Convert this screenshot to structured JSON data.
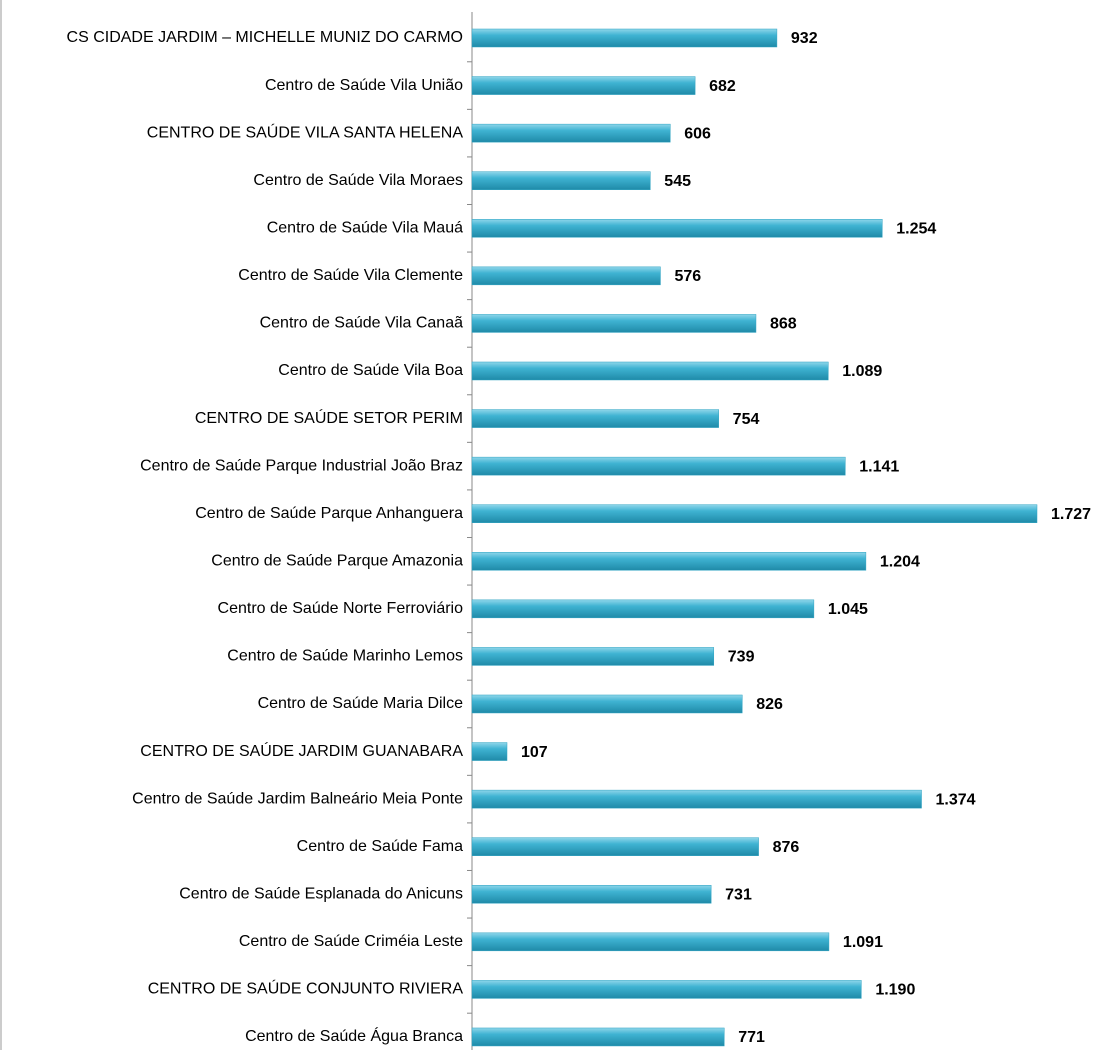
{
  "chart_data": {
    "type": "bar",
    "orientation": "horizontal",
    "categories": [
      "CS CIDADE JARDIM – MICHELLE MUNIZ DO CARMO",
      "Centro de Saúde Vila União",
      "CENTRO DE SAÚDE VILA SANTA HELENA",
      "Centro de Saúde Vila Moraes",
      "Centro de Saúde Vila Mauá",
      "Centro de Saúde Vila Clemente",
      "Centro de Saúde Vila Canaã",
      "Centro de Saúde Vila Boa",
      "CENTRO DE SAÚDE SETOR PERIM",
      "Centro de Saúde Parque Industrial João Braz",
      "Centro de Saúde Parque Anhanguera",
      "Centro de Saúde Parque Amazonia",
      "Centro de Saúde Norte Ferroviário",
      "Centro de Saúde Marinho Lemos",
      "Centro de Saúde Maria Dilce",
      "CENTRO DE SAÚDE JARDIM GUANABARA",
      "Centro de Saúde Jardim Balneário Meia Ponte",
      "Centro de Saúde Fama",
      "Centro de Saúde Esplanada do Anicuns",
      "Centro de Saúde Criméia Leste",
      "CENTRO DE SAÚDE CONJUNTO RIVIERA",
      "Centro de Saúde Água Branca"
    ],
    "values": [
      932,
      682,
      606,
      545,
      1254,
      576,
      868,
      1089,
      754,
      1141,
      1727,
      1204,
      1045,
      739,
      826,
      107,
      1374,
      876,
      731,
      1091,
      1190,
      771
    ],
    "value_labels": [
      "932",
      "682",
      "606",
      "545",
      "1.254",
      "576",
      "868",
      "1.089",
      "754",
      "1.141",
      "1.727",
      "1.204",
      "1.045",
      "739",
      "826",
      "107",
      "1.374",
      "876",
      "731",
      "1.091",
      "1.190",
      "771"
    ],
    "color": "#2fa3c2"
  }
}
